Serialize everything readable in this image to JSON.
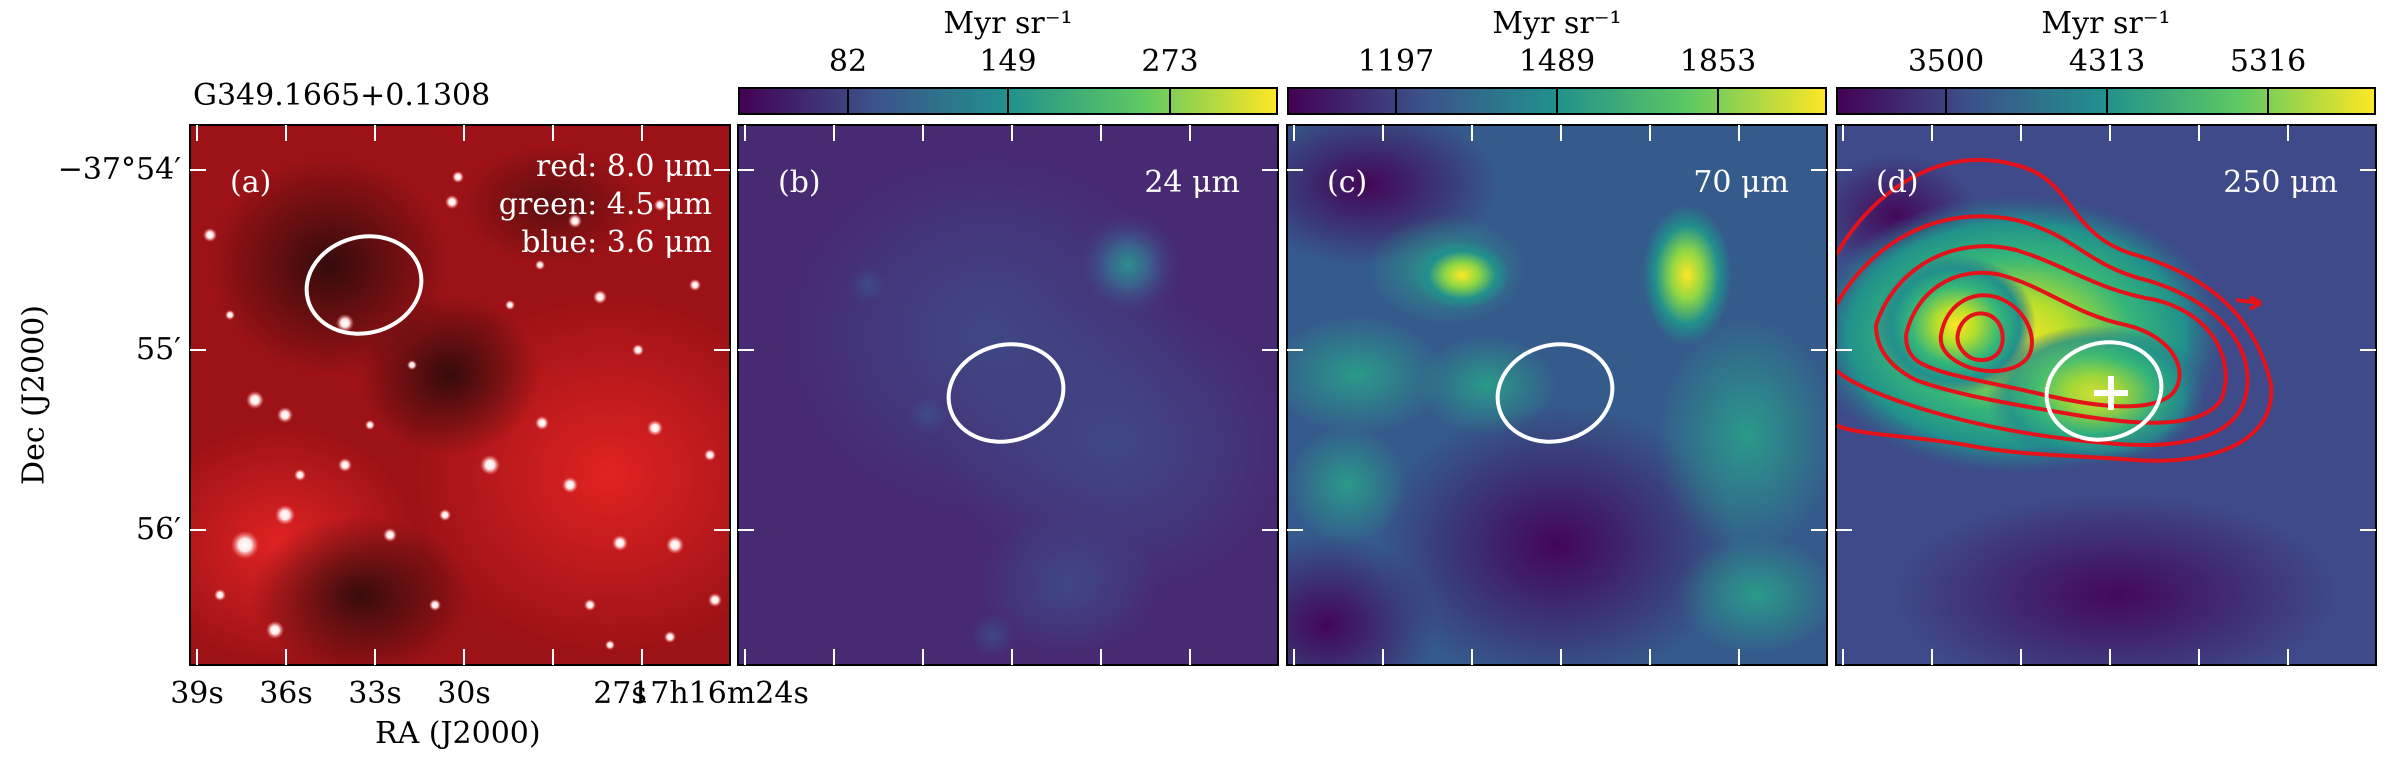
{
  "source_name": "G349.1665+0.1308",
  "colorbar_unit": "Myr sr⁻¹",
  "panels": [
    {
      "label": "(a)",
      "legend": {
        "red": "red: 8.0 μm",
        "green": "green: 4.5 μm",
        "blue": "blue: 3.6 μm"
      }
    },
    {
      "label": "(b)",
      "wavelength": "24 μm",
      "colorbar_ticks": [
        "82",
        "149",
        "273"
      ]
    },
    {
      "label": "(c)",
      "wavelength": "70 μm",
      "colorbar_ticks": [
        "1197",
        "1489",
        "1853"
      ]
    },
    {
      "label": "(d)",
      "wavelength": "250 μm",
      "colorbar_ticks": [
        "3500",
        "4313",
        "5316"
      ]
    }
  ],
  "axes": {
    "ylabel": "Dec (J2000)",
    "xlabel": "RA (J2000)",
    "dec_ticks": [
      "−37°54′",
      "55′",
      "56′"
    ],
    "ra_ticks": [
      "39s",
      "36s",
      "33s",
      "30s",
      "27s",
      "17h16m24s"
    ]
  },
  "colors": {
    "colormap": [
      "#440154",
      "#3b528b",
      "#21918c",
      "#5ec962",
      "#fde725"
    ],
    "contour": "#e3121b",
    "ellipse": "#ffffff"
  }
}
